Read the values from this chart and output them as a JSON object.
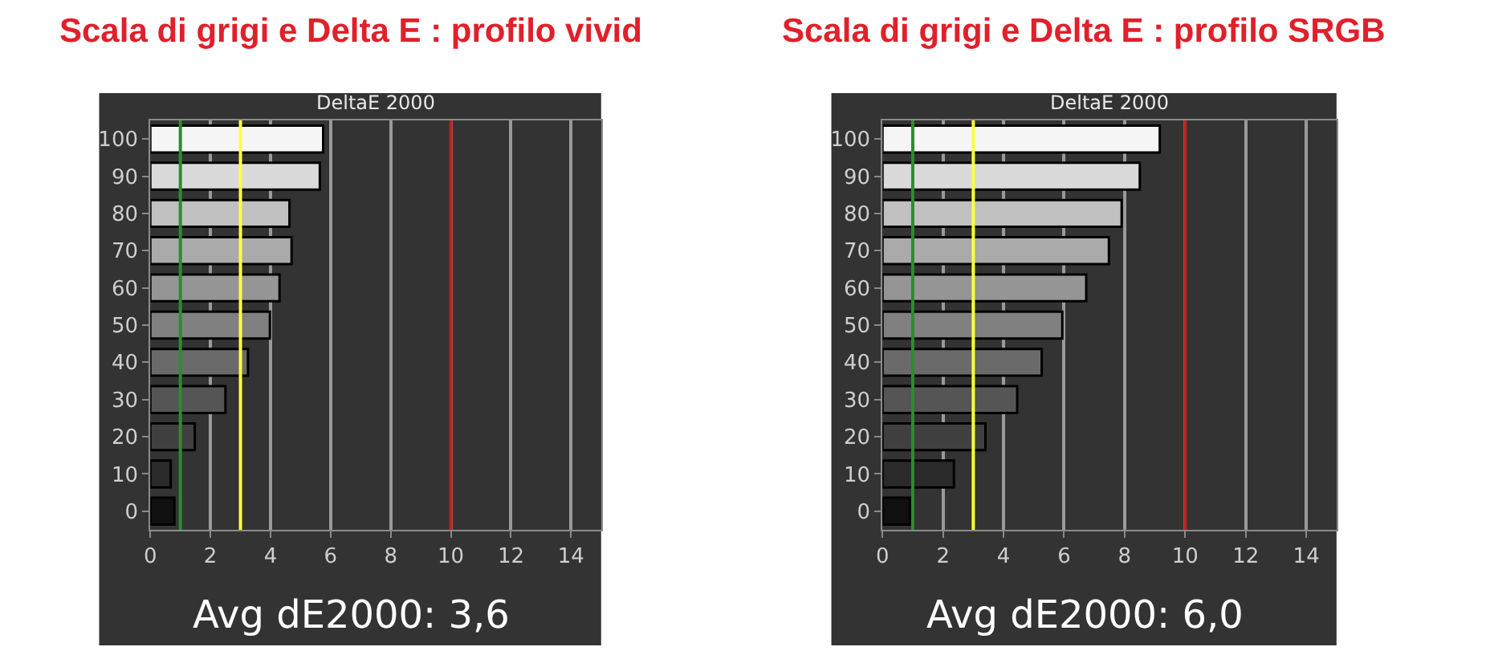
{
  "chart_data": [
    {
      "type": "bar",
      "orientation": "horizontal",
      "title": "Scala di grigi e Delta E : profilo vivid",
      "subtitle": "DeltaE 2000",
      "categories": [
        "100",
        "90",
        "80",
        "70",
        "60",
        "50",
        "40",
        "30",
        "20",
        "10",
        "0"
      ],
      "values": [
        5.75,
        5.64,
        4.63,
        4.7,
        4.3,
        3.98,
        3.25,
        2.5,
        1.48,
        0.68,
        0.8
      ],
      "colors": [
        "#f5f5f5",
        "#dadada",
        "#c0c0c0",
        "#aaaaaa",
        "#959595",
        "#808080",
        "#6a6a6a",
        "#555555",
        "#404040",
        "#2a2a2a",
        "#101010"
      ],
      "xlim": [
        0,
        15
      ],
      "xticks": [
        0,
        2,
        4,
        6,
        8,
        10,
        12,
        14
      ],
      "grid": "x",
      "ref_lines": [
        {
          "axis": "x",
          "value": 1,
          "color": "#2e8b2e"
        },
        {
          "axis": "x",
          "value": 3,
          "color": "#ffff40"
        },
        {
          "axis": "x",
          "value": 10,
          "color": "#c02020"
        }
      ],
      "annotations": [
        "Avg dE2000: 3,6"
      ]
    },
    {
      "type": "bar",
      "orientation": "horizontal",
      "title": "Scala di grigi e Delta E : profilo SRGB",
      "subtitle": "DeltaE 2000",
      "categories": [
        "100",
        "90",
        "80",
        "70",
        "60",
        "50",
        "40",
        "30",
        "20",
        "10",
        "0"
      ],
      "values": [
        9.16,
        8.5,
        7.9,
        7.48,
        6.73,
        5.94,
        5.26,
        4.45,
        3.4,
        2.36,
        0.91
      ],
      "colors": [
        "#f5f5f5",
        "#dadada",
        "#c0c0c0",
        "#aaaaaa",
        "#959595",
        "#808080",
        "#6a6a6a",
        "#555555",
        "#404040",
        "#2a2a2a",
        "#101010"
      ],
      "xlim": [
        0,
        15
      ],
      "xticks": [
        0,
        2,
        4,
        6,
        8,
        10,
        12,
        14
      ],
      "grid": "x",
      "ref_lines": [
        {
          "axis": "x",
          "value": 1,
          "color": "#2e8b2e"
        },
        {
          "axis": "x",
          "value": 3,
          "color": "#ffff40"
        },
        {
          "axis": "x",
          "value": 10,
          "color": "#c02020"
        }
      ],
      "annotations": [
        "Avg dE2000: 6,0"
      ]
    }
  ]
}
